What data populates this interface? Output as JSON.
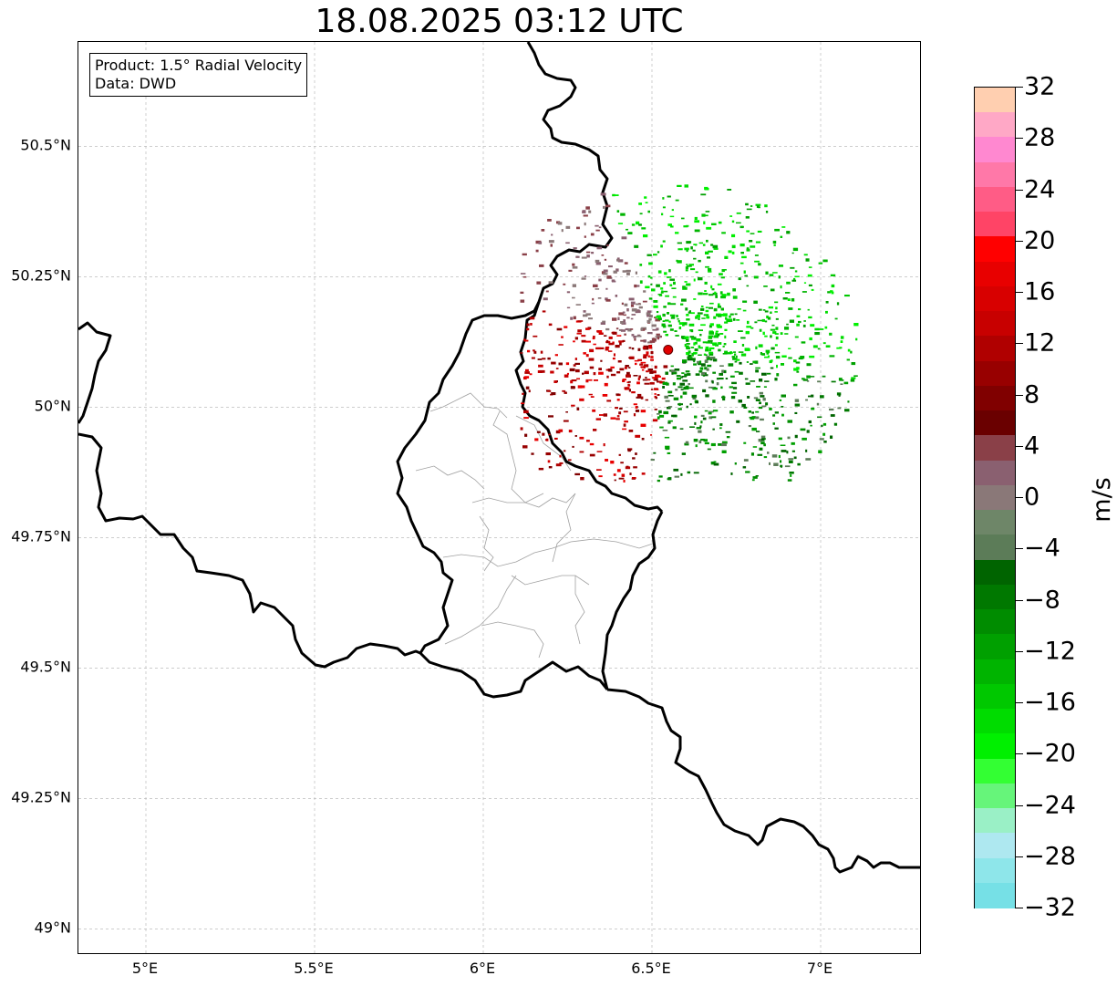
{
  "title": "18.08.2025 03:12 UTC",
  "info_box": {
    "product": "Product: 1.5° Radial Velocity",
    "data": "Data: DWD"
  },
  "map": {
    "lat_labels": [
      "50.5°N",
      "50.25°N",
      "50°N",
      "49.75°N",
      "49.5°N",
      "49.25°N",
      "49°N"
    ],
    "lon_labels": [
      "5°E",
      "5.5°E",
      "6°E",
      "6.5°E",
      "7°E"
    ],
    "lat_values": [
      50.5,
      50.25,
      50.0,
      49.75,
      49.5,
      49.25,
      49.0
    ],
    "lon_values": [
      5.0,
      5.5,
      6.0,
      6.5,
      7.0
    ],
    "extent": {
      "lon_min": 4.8,
      "lon_max": 7.3,
      "lat_min": 48.95,
      "lat_max": 50.7
    },
    "radar_site": {
      "lon": 6.548,
      "lat": 50.11,
      "color": "#e00000"
    },
    "gridlines": true,
    "border_color": "#000000",
    "region_line_color": "#a0a0a0"
  },
  "colorbar": {
    "unit": "m/s",
    "min": -32,
    "max": 32,
    "tick_labels": [
      "32",
      "28",
      "24",
      "20",
      "16",
      "12",
      "8",
      "4",
      "0",
      "−4",
      "−8",
      "−12",
      "−16",
      "−20",
      "−24",
      "−28",
      "−32"
    ],
    "colors_top_to_bottom": [
      "#ffcfb0",
      "#ffa8c6",
      "#ff88d0",
      "#ff78a8",
      "#ff5c86",
      "#ff4466",
      "#ff0000",
      "#e80000",
      "#d80000",
      "#c80000",
      "#b00000",
      "#980000",
      "#800000",
      "#6a0000",
      "#8a4048",
      "#8a6070",
      "#8a7878",
      "#6e8668",
      "#5c7c58",
      "#006400",
      "#007800",
      "#008c00",
      "#00a000",
      "#00b400",
      "#00c800",
      "#00dc00",
      "#00f000",
      "#33ff33",
      "#66f57a",
      "#9af0c6",
      "#aee8f0",
      "#8ee6ea",
      "#76e0e6"
    ]
  }
}
